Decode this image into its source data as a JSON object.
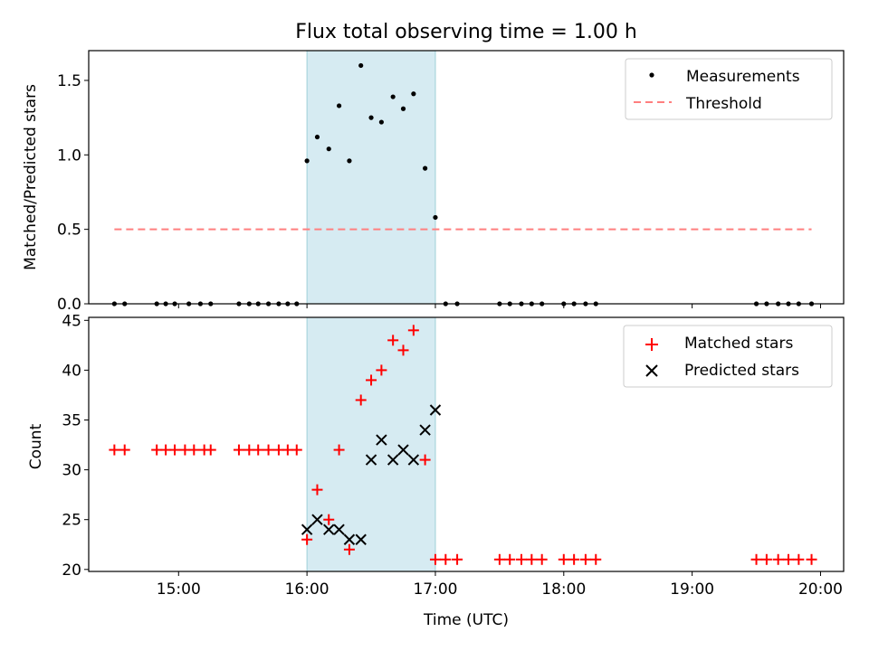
{
  "title": "Flux total observing time = 1.00 h",
  "colors": {
    "span": "#add8e6",
    "measurement": "#000000",
    "threshold": "#ff7f7f",
    "matched": "#ff0000",
    "predicted": "#000000"
  },
  "chart_data": [
    {
      "type": "scatter",
      "name": "ratio-panel",
      "ylabel": "Matched/Predicted stars",
      "xlim": [
        14.3,
        20.18
      ],
      "ylim": [
        0,
        1.7
      ],
      "yticks": [
        0.0,
        0.5,
        1.0,
        1.5
      ],
      "ytick_labels": [
        "0.0",
        "0.5",
        "1.0",
        "1.5"
      ],
      "highlight_span": [
        16.0,
        17.0
      ],
      "legend": [
        {
          "label": "Measurements",
          "marker": "dot"
        },
        {
          "label": "Threshold",
          "marker": "dashed-line"
        }
      ],
      "threshold": {
        "x": [
          14.5,
          19.93
        ],
        "y": 0.5
      },
      "measurements": {
        "x": [
          14.5,
          14.58,
          14.83,
          14.9,
          14.97,
          15.08,
          15.17,
          15.25,
          15.47,
          15.55,
          15.62,
          15.7,
          15.78,
          15.85,
          15.92,
          16.0,
          16.08,
          16.17,
          16.25,
          16.33,
          16.42,
          16.5,
          16.58,
          16.67,
          16.75,
          16.83,
          16.92,
          17.0,
          17.08,
          17.17,
          17.5,
          17.58,
          17.67,
          17.75,
          17.83,
          18.0,
          18.08,
          18.17,
          18.25,
          19.5,
          19.58,
          19.67,
          19.75,
          19.83,
          19.93
        ],
        "y": [
          0,
          0,
          0,
          0,
          0,
          0,
          0,
          0,
          0,
          0,
          0,
          0,
          0,
          0,
          0,
          0.96,
          1.12,
          1.04,
          1.33,
          0.96,
          1.6,
          1.25,
          1.22,
          1.39,
          1.31,
          1.41,
          0.91,
          0.58,
          0,
          0,
          0,
          0,
          0,
          0,
          0,
          0,
          0,
          0,
          0,
          0,
          0,
          0,
          0,
          0,
          0
        ]
      }
    },
    {
      "type": "scatter",
      "name": "count-panel",
      "xlabel": "Time (UTC)",
      "ylabel": "Count",
      "xlim": [
        14.3,
        20.18
      ],
      "ylim": [
        19.8,
        45.3
      ],
      "yticks": [
        20,
        25,
        30,
        35,
        40,
        45
      ],
      "ytick_labels": [
        "20",
        "25",
        "30",
        "35",
        "40",
        "45"
      ],
      "xticks": [
        15,
        16,
        17,
        18,
        19,
        20
      ],
      "xtick_labels": [
        "15:00",
        "16:00",
        "17:00",
        "18:00",
        "19:00",
        "20:00"
      ],
      "highlight_span": [
        16.0,
        17.0
      ],
      "legend": [
        {
          "label": "Matched stars",
          "marker": "plus"
        },
        {
          "label": "Predicted stars",
          "marker": "x"
        }
      ],
      "series": [
        {
          "name": "Matched stars",
          "marker": "plus",
          "x": [
            14.5,
            14.58,
            14.83,
            14.9,
            14.97,
            15.05,
            15.12,
            15.2,
            15.25,
            15.47,
            15.55,
            15.62,
            15.7,
            15.78,
            15.85,
            15.92,
            16.0,
            16.08,
            16.17,
            16.25,
            16.33,
            16.42,
            16.5,
            16.58,
            16.67,
            16.75,
            16.83,
            16.92,
            17.0,
            17.08,
            17.17,
            17.5,
            17.58,
            17.67,
            17.75,
            17.83,
            18.0,
            18.08,
            18.17,
            18.25,
            19.5,
            19.58,
            19.67,
            19.75,
            19.83,
            19.93
          ],
          "y": [
            32,
            32,
            32,
            32,
            32,
            32,
            32,
            32,
            32,
            32,
            32,
            32,
            32,
            32,
            32,
            32,
            23,
            28,
            25,
            32,
            22,
            37,
            39,
            40,
            43,
            42,
            44,
            31,
            21,
            21,
            21,
            21,
            21,
            21,
            21,
            21,
            21,
            21,
            21,
            21,
            21,
            21,
            21,
            21,
            21,
            21
          ]
        },
        {
          "name": "Predicted stars",
          "marker": "x",
          "x": [
            16.0,
            16.08,
            16.17,
            16.25,
            16.33,
            16.42,
            16.5,
            16.58,
            16.67,
            16.75,
            16.83,
            16.92,
            17.0
          ],
          "y": [
            24,
            25,
            24,
            24,
            23,
            23,
            31,
            33,
            31,
            32,
            31,
            34,
            36
          ]
        }
      ]
    }
  ]
}
